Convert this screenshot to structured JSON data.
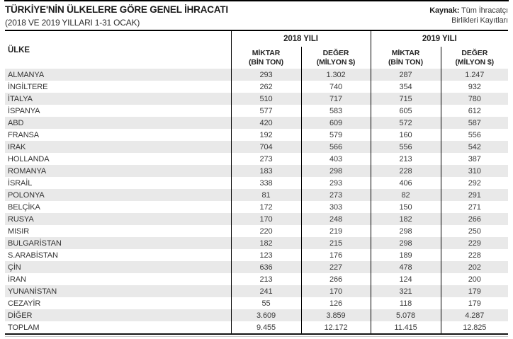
{
  "page": {
    "title": "TÜRKİYE'NİN ÜLKELERE GÖRE GENEL İHRACATI",
    "subtitle": "(2018 VE 2019 YILLARI 1-31 OCAK)",
    "source_label": "Kaynak:",
    "source_line1": " Tüm İhracatçı",
    "source_line2": "Birlikleri Kayıtları"
  },
  "table": {
    "country_header": "ÜLKE",
    "year_2018": "2018 YILI",
    "year_2019": "2019 YILI",
    "h_qty": "MİKTAR",
    "h_qty_unit": "(BİN TON)",
    "h_val": "DEĞER",
    "h_val_unit": "(MİLYON $)"
  },
  "colors": {
    "stripe": "#e9e9e9",
    "border": "#000000",
    "text": "#3a3a3a",
    "title_text": "#1c1c1c"
  },
  "chart_data": {
    "type": "table",
    "title": "TÜRKİYE'NİN ÜLKELERE GÖRE GENEL İHRACATI",
    "subtitle": "(2018 VE 2019 YILLARI 1-31 OCAK)",
    "source": "Kaynak: Tüm İhracatçı Birlikleri Kayıtları",
    "columns": [
      "ÜLKE",
      "2018 YILI MİKTAR (BİN TON)",
      "2018 YILI DEĞER (MİLYON $)",
      "2019 YILI MİKTAR (BİN TON)",
      "2019 YILI DEĞER (MİLYON $)"
    ],
    "rows": [
      {
        "country": "ALMANYA",
        "qty_2018": "293",
        "val_2018": "1.302",
        "qty_2019": "287",
        "val_2019": "1.247"
      },
      {
        "country": "İNGİLTERE",
        "qty_2018": "262",
        "val_2018": "740",
        "qty_2019": "354",
        "val_2019": "932"
      },
      {
        "country": "İTALYA",
        "qty_2018": "510",
        "val_2018": "717",
        "qty_2019": "715",
        "val_2019": "780"
      },
      {
        "country": "İSPANYA",
        "qty_2018": "577",
        "val_2018": "583",
        "qty_2019": "605",
        "val_2019": "612"
      },
      {
        "country": "ABD",
        "qty_2018": "420",
        "val_2018": "609",
        "qty_2019": "572",
        "val_2019": "587"
      },
      {
        "country": "FRANSA",
        "qty_2018": "192",
        "val_2018": "579",
        "qty_2019": "160",
        "val_2019": "556"
      },
      {
        "country": "IRAK",
        "qty_2018": "704",
        "val_2018": "566",
        "qty_2019": "556",
        "val_2019": "542"
      },
      {
        "country": "HOLLANDA",
        "qty_2018": "273",
        "val_2018": "403",
        "qty_2019": "213",
        "val_2019": "387"
      },
      {
        "country": "ROMANYA",
        "qty_2018": "183",
        "val_2018": "298",
        "qty_2019": "228",
        "val_2019": "310"
      },
      {
        "country": "İSRAİL",
        "qty_2018": "338",
        "val_2018": "293",
        "qty_2019": "406",
        "val_2019": "292"
      },
      {
        "country": "POLONYA",
        "qty_2018": "81",
        "val_2018": "273",
        "qty_2019": "82",
        "val_2019": "291"
      },
      {
        "country": "BELÇİKA",
        "qty_2018": "172",
        "val_2018": "303",
        "qty_2019": "150",
        "val_2019": "271"
      },
      {
        "country": "RUSYA",
        "qty_2018": "170",
        "val_2018": "248",
        "qty_2019": "182",
        "val_2019": "266"
      },
      {
        "country": "MISIR",
        "qty_2018": "220",
        "val_2018": "219",
        "qty_2019": "298",
        "val_2019": "250"
      },
      {
        "country": "BULGARİSTAN",
        "qty_2018": "182",
        "val_2018": "215",
        "qty_2019": "298",
        "val_2019": "229"
      },
      {
        "country": "S.ARABİSTAN",
        "qty_2018": "123",
        "val_2018": "176",
        "qty_2019": "189",
        "val_2019": "228"
      },
      {
        "country": "ÇİN",
        "qty_2018": "636",
        "val_2018": "227",
        "qty_2019": "478",
        "val_2019": "202"
      },
      {
        "country": "İRAN",
        "qty_2018": "213",
        "val_2018": "266",
        "qty_2019": "124",
        "val_2019": "200"
      },
      {
        "country": "YUNANİSTAN",
        "qty_2018": "241",
        "val_2018": "170",
        "qty_2019": "321",
        "val_2019": "179"
      },
      {
        "country": "CEZAYİR",
        "qty_2018": "55",
        "val_2018": "126",
        "qty_2019": "118",
        "val_2019": "179"
      },
      {
        "country": "DİĞER",
        "qty_2018": "3.609",
        "val_2018": "3.859",
        "qty_2019": "5.078",
        "val_2019": "4.287"
      },
      {
        "country": "TOPLAM",
        "qty_2018": "9.455",
        "val_2018": "12.172",
        "qty_2019": "11.415",
        "val_2019": "12.825"
      }
    ]
  }
}
